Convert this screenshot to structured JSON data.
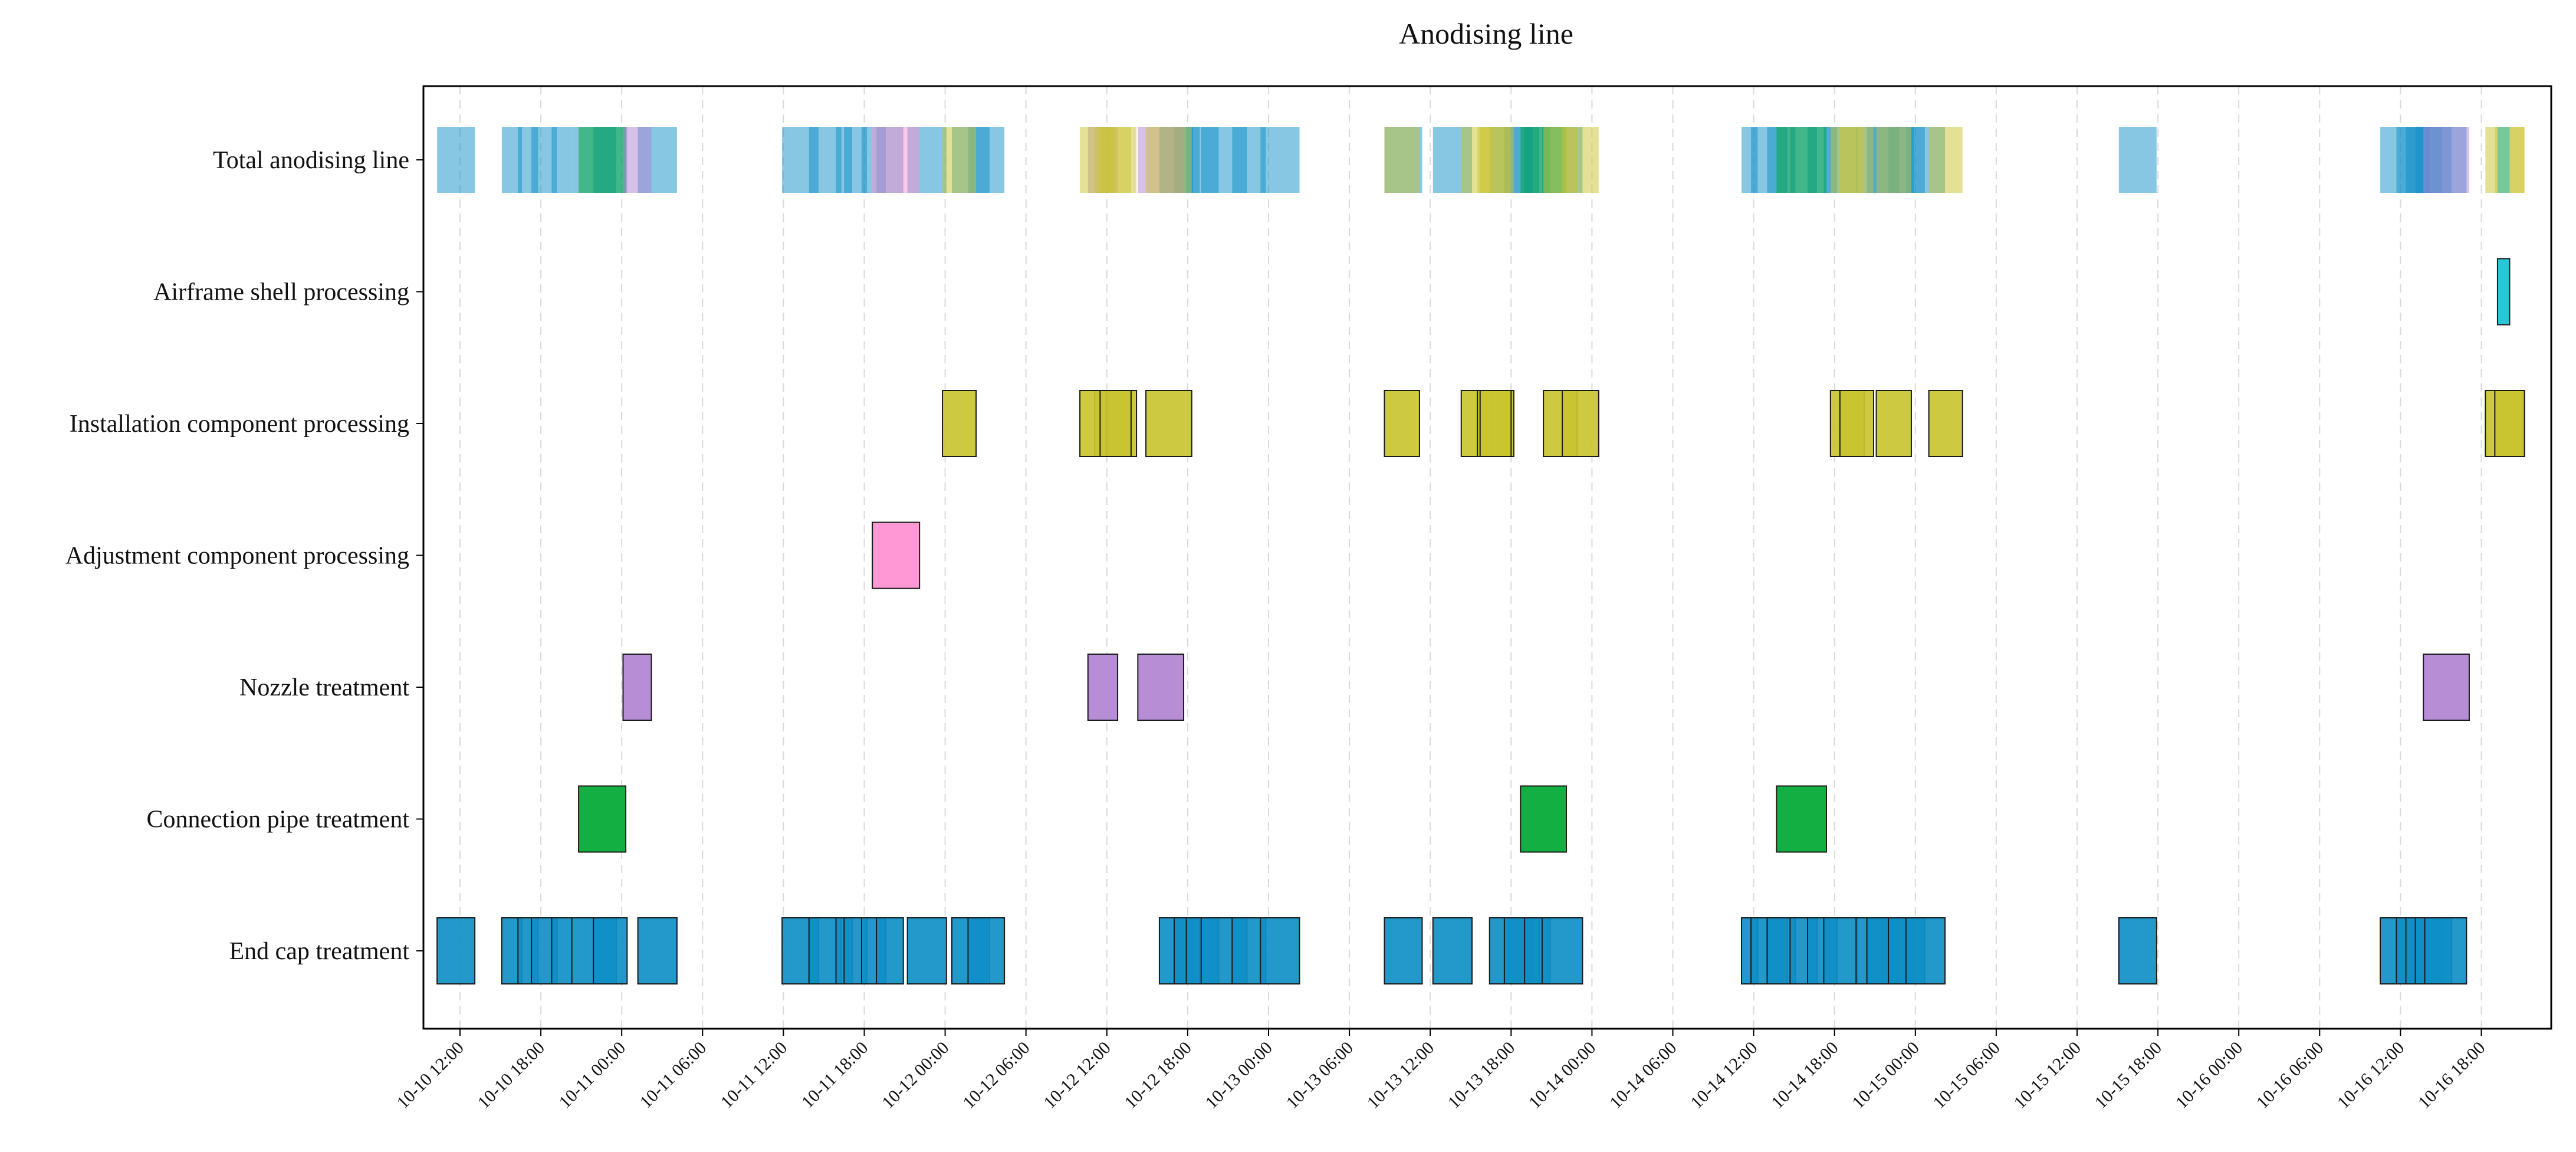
{
  "chart_data": {
    "type": "gantt",
    "title": "Anodising line",
    "xlabel": "",
    "ylabel": "",
    "x_unit": "hours since 10-10 12:00",
    "xlim": [
      -1.7,
      153.2
    ],
    "x_ticks": [
      {
        "label": "10-10 12:00",
        "t": 0
      },
      {
        "label": "10-10 18:00",
        "t": 6
      },
      {
        "label": "10-11 00:00",
        "t": 12
      },
      {
        "label": "10-11 06:00",
        "t": 18
      },
      {
        "label": "10-11 12:00",
        "t": 24
      },
      {
        "label": "10-11 18:00",
        "t": 30
      },
      {
        "label": "10-12 00:00",
        "t": 36
      },
      {
        "label": "10-12 06:00",
        "t": 42
      },
      {
        "label": "10-12 12:00",
        "t": 48
      },
      {
        "label": "10-12 18:00",
        "t": 54
      },
      {
        "label": "10-13 00:00",
        "t": 60
      },
      {
        "label": "10-13 06:00",
        "t": 66
      },
      {
        "label": "10-13 12:00",
        "t": 72
      },
      {
        "label": "10-13 18:00",
        "t": 78
      },
      {
        "label": "10-14 00:00",
        "t": 84
      },
      {
        "label": "10-14 06:00",
        "t": 90
      },
      {
        "label": "10-14 12:00",
        "t": 96
      },
      {
        "label": "10-14 18:00",
        "t": 102
      },
      {
        "label": "10-15 00:00",
        "t": 108
      },
      {
        "label": "10-15 06:00",
        "t": 114
      },
      {
        "label": "10-15 12:00",
        "t": 120
      },
      {
        "label": "10-15 18:00",
        "t": 126
      },
      {
        "label": "10-16 00:00",
        "t": 132
      },
      {
        "label": "10-16 06:00",
        "t": 138
      },
      {
        "label": "10-16 12:00",
        "t": 144
      },
      {
        "label": "10-16 18:00",
        "t": 150
      }
    ],
    "categories": [
      "Total anodising line",
      "Airframe shell processing",
      "Installation component processing",
      "Adjustment component processing",
      "Nozzle treatment",
      "Connection pipe treatment",
      "End cap treatment"
    ],
    "series": [
      {
        "name": "End cap treatment",
        "color": "#0f8fc7",
        "tasks": [
          [
            -1.7,
            1.1
          ],
          [
            3.1,
            4.6
          ],
          [
            4.3,
            5.8
          ],
          [
            5.3,
            7.2
          ],
          [
            6.8,
            8.3
          ],
          [
            8.3,
            11.6
          ],
          [
            9.9,
            12.4
          ],
          [
            13.2,
            16.1
          ],
          [
            23.9,
            26.6
          ],
          [
            25.9,
            28.3
          ],
          [
            27.9,
            29.1
          ],
          [
            28.5,
            30.2
          ],
          [
            29.8,
            31.6
          ],
          [
            30.9,
            32.9
          ],
          [
            33.2,
            36.1
          ],
          [
            36.5,
            39.3
          ],
          [
            37.7,
            40.4
          ],
          [
            51.9,
            54.4
          ],
          [
            53.0,
            54.9
          ],
          [
            53.9,
            56.3
          ],
          [
            55.0,
            58.4
          ],
          [
            57.3,
            59.8
          ],
          [
            59.4,
            62.3
          ],
          [
            68.6,
            71.4
          ],
          [
            72.2,
            75.1
          ],
          [
            76.4,
            79.6
          ],
          [
            77.5,
            80.1
          ],
          [
            79.0,
            80.9
          ],
          [
            80.3,
            83.3
          ],
          [
            95.1,
            96.3
          ],
          [
            95.8,
            98.5
          ],
          [
            97.0,
            99.1
          ],
          [
            98.7,
            100.7
          ],
          [
            100.0,
            102.2
          ],
          [
            101.2,
            103.7
          ],
          [
            103.6,
            106.8
          ],
          [
            104.4,
            107.9
          ],
          [
            106.0,
            108.7
          ],
          [
            107.3,
            110.2
          ],
          [
            123.1,
            125.9
          ],
          [
            142.5,
            145.7
          ],
          [
            143.7,
            146.2
          ],
          [
            144.4,
            147.1
          ],
          [
            145.1,
            147.8
          ],
          [
            145.8,
            148.9
          ]
        ]
      },
      {
        "name": "Connection pipe treatment",
        "color": "#00a832",
        "tasks": [
          [
            8.8,
            12.3
          ],
          [
            78.7,
            82.1
          ],
          [
            97.7,
            101.4
          ]
        ]
      },
      {
        "name": "Nozzle treatment",
        "color": "#b184d3",
        "tasks": [
          [
            12.1,
            14.2
          ],
          [
            46.6,
            48.8
          ],
          [
            50.3,
            53.7
          ],
          [
            145.7,
            149.1
          ]
        ]
      },
      {
        "name": "Adjustment component processing",
        "color": "#ff8fd0",
        "tasks": [
          [
            30.6,
            34.1
          ]
        ]
      },
      {
        "name": "Installation component processing",
        "color": "#c9c430",
        "tasks": [
          [
            35.8,
            38.3
          ],
          [
            47.1,
            48.6
          ],
          [
            46.0,
            48.2
          ],
          [
            48.0,
            50.2
          ],
          [
            47.5,
            49.8
          ],
          [
            50.9,
            54.3
          ],
          [
            68.6,
            71.2
          ],
          [
            74.3,
            76.6
          ],
          [
            75.5,
            78.2
          ],
          [
            75.7,
            78.0
          ],
          [
            80.4,
            82.9
          ],
          [
            81.8,
            84.5
          ],
          [
            101.7,
            104.2
          ],
          [
            102.4,
            104.9
          ],
          [
            105.1,
            107.7
          ],
          [
            109.0,
            111.5
          ],
          [
            150.3,
            153.2
          ],
          [
            151.0,
            153.2
          ]
        ]
      },
      {
        "name": "Airframe shell processing",
        "color": "#12c2d6",
        "tasks": [
          [
            151.2,
            152.1
          ]
        ]
      }
    ]
  }
}
